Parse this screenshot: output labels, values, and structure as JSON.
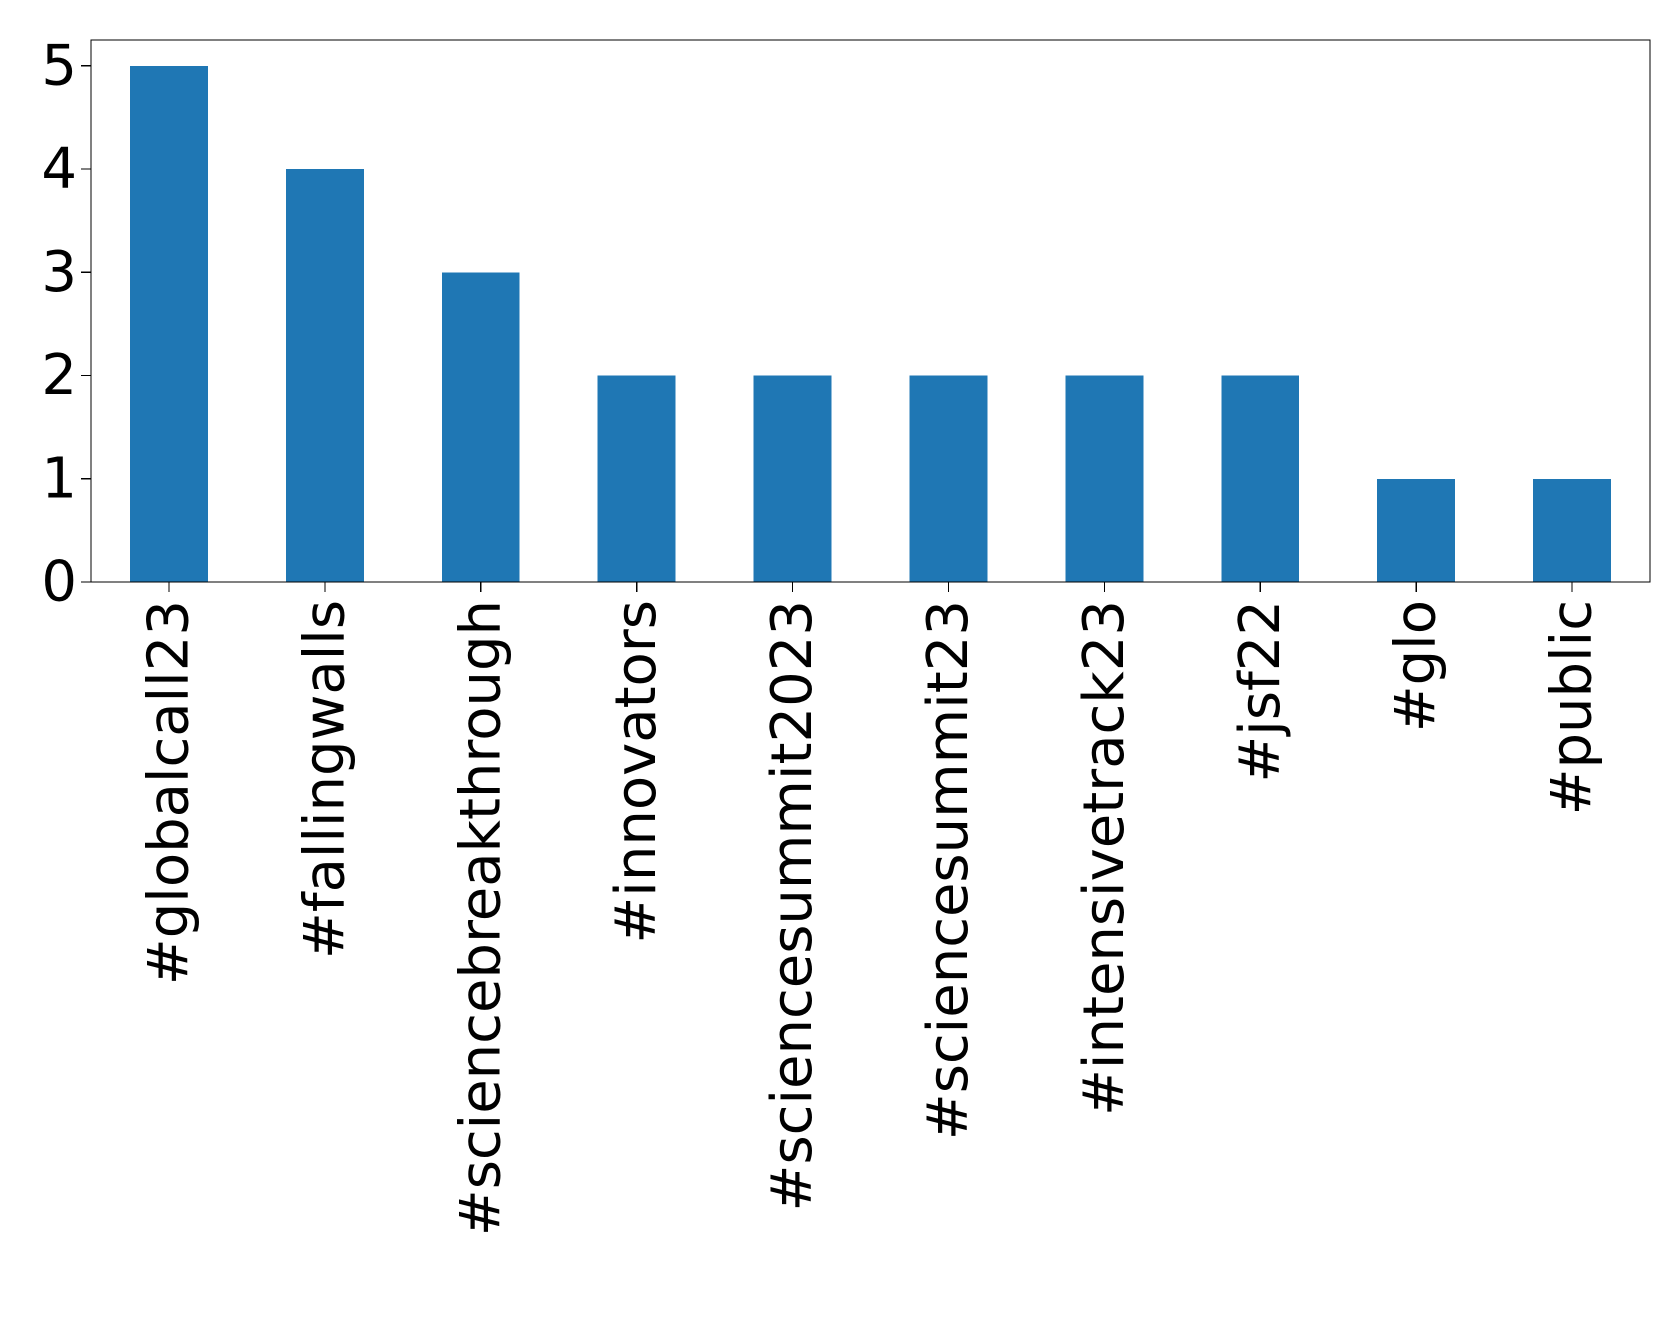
{
  "colors": {
    "bar": "#1f77b4",
    "axis": "#000000",
    "background": "#ffffff"
  },
  "chart_data": {
    "type": "bar",
    "title": "",
    "xlabel": "",
    "ylabel": "",
    "categories": [
      "#globalcall23",
      "#fallingwalls",
      "#sciencebreakthrough",
      "#innovators",
      "#sciencesummit2023",
      "#sciencesummit23",
      "#intensivetrack23",
      "#jsf22",
      "#glo",
      "#public"
    ],
    "values": [
      5,
      4,
      3,
      2,
      2,
      2,
      2,
      2,
      1,
      1
    ],
    "ylim": [
      0,
      5.25
    ],
    "yticks": [
      0,
      1,
      2,
      3,
      4,
      5
    ],
    "ytick_labels": [
      "0",
      "1",
      "2",
      "3",
      "4",
      "5"
    ],
    "grid": false,
    "legend": "none"
  }
}
